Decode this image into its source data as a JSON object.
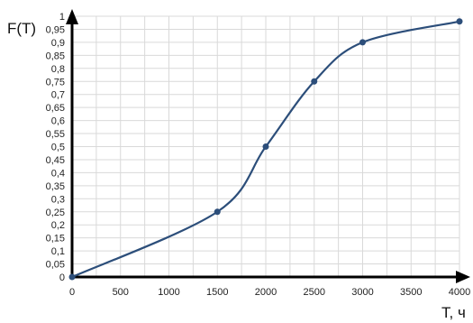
{
  "chart_data": {
    "type": "line",
    "title": "",
    "xlabel": "T, ч",
    "ylabel": "F(T)",
    "xlim": [
      0,
      4000
    ],
    "ylim": [
      0,
      1
    ],
    "x_ticks": [
      "0",
      "500",
      "1000",
      "1500",
      "2000",
      "2500",
      "3000",
      "3500",
      "4000"
    ],
    "y_ticks": [
      "0",
      "0,05",
      "0,1",
      "0,15",
      "0,2",
      "0,25",
      "0,3",
      "0,35",
      "0,4",
      "0,45",
      "0,5",
      "0,55",
      "0,6",
      "0,65",
      "0,7",
      "0,75",
      "0,8",
      "0,85",
      "0,9",
      "0,95",
      "1"
    ],
    "grid": true,
    "legend": "none",
    "series": [
      {
        "x": [
          0,
          1500,
          2000,
          2500,
          3000,
          4000
        ],
        "y": [
          0,
          0.25,
          0.5,
          0.75,
          0.9,
          0.98
        ],
        "color": "#2c4e7a",
        "smooth": true,
        "markers": true
      }
    ]
  }
}
